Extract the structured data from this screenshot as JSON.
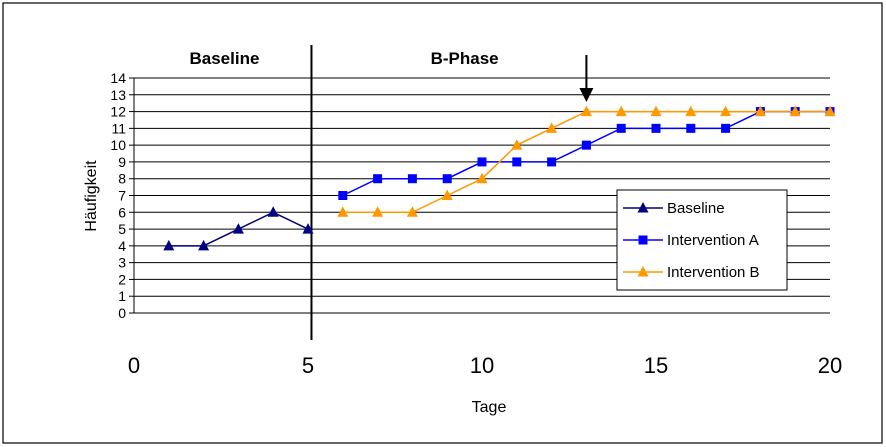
{
  "chart_data": {
    "type": "line",
    "xlabel": "Tage",
    "ylabel": "Häufigkeit",
    "xlim": [
      0,
      20
    ],
    "ylim": [
      0,
      14
    ],
    "x_ticks": [
      0,
      5,
      10,
      15,
      20
    ],
    "y_ticks": [
      0,
      1,
      2,
      3,
      4,
      5,
      6,
      7,
      8,
      9,
      10,
      11,
      12,
      13,
      14
    ],
    "grid": true,
    "legend_position": "right",
    "phase_divider_x": 5.1,
    "phases": [
      {
        "label": "Baseline",
        "x_center": 2.6
      },
      {
        "label": "B-Phase",
        "x_center": 9.5
      }
    ],
    "arrow_x": 13,
    "series": [
      {
        "name": "Baseline",
        "marker": "triangle",
        "color": "#000080",
        "x": [
          1,
          2,
          3,
          4,
          5
        ],
        "values": [
          4,
          4,
          5,
          6,
          5
        ]
      },
      {
        "name": "Intervention A",
        "marker": "square",
        "color": "#0000ff",
        "x": [
          6,
          7,
          8,
          9,
          10,
          11,
          12,
          13,
          14,
          15,
          16,
          17,
          18,
          19,
          20
        ],
        "values": [
          7,
          8,
          8,
          8,
          9,
          9,
          9,
          10,
          11,
          11,
          11,
          11,
          12,
          12,
          12
        ]
      },
      {
        "name": "Intervention B",
        "marker": "triangle",
        "color": "#ff9900",
        "x": [
          6,
          7,
          8,
          9,
          10,
          11,
          12,
          13,
          14,
          15,
          16,
          17,
          18,
          19,
          20
        ],
        "values": [
          6,
          6,
          6,
          7,
          8,
          10,
          11,
          12,
          12,
          12,
          12,
          12,
          12,
          12,
          12
        ]
      }
    ]
  }
}
